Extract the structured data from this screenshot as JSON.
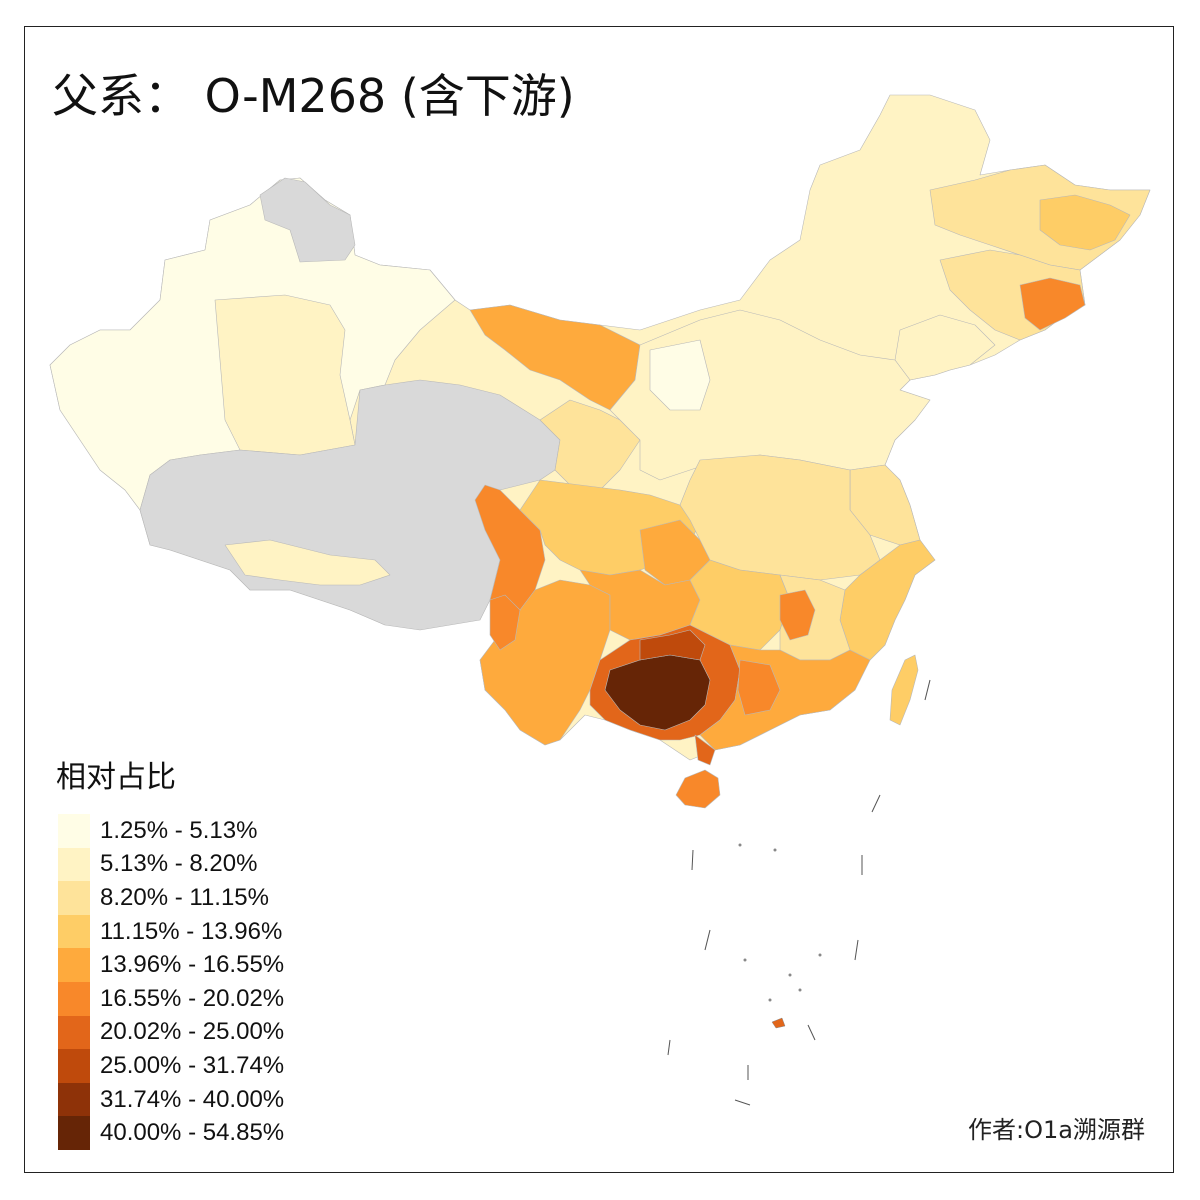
{
  "title": "父系： O-M268 (含下游)",
  "legend": {
    "title": "相对占比",
    "items": [
      {
        "label": "1.25% - 5.13%",
        "color": "#fffde6"
      },
      {
        "label": "5.13% - 8.20%",
        "color": "#fff3c4"
      },
      {
        "label": "8.20% - 11.15%",
        "color": "#fee39a"
      },
      {
        "label": "11.15% - 13.96%",
        "color": "#fecd66"
      },
      {
        "label": "13.96% - 16.55%",
        "color": "#feaa3d"
      },
      {
        "label": "16.55% - 20.02%",
        "color": "#f8882a"
      },
      {
        "label": "20.02% - 25.00%",
        "color": "#e2661a"
      },
      {
        "label": "25.00% - 31.74%",
        "color": "#bf4a0c"
      },
      {
        "label": "31.74% - 40.00%",
        "color": "#8e3208"
      },
      {
        "label": "40.00% - 54.85%",
        "color": "#662506"
      }
    ],
    "no_data_color": "#d9d9d9"
  },
  "author": "作者:O1a溯源群"
}
